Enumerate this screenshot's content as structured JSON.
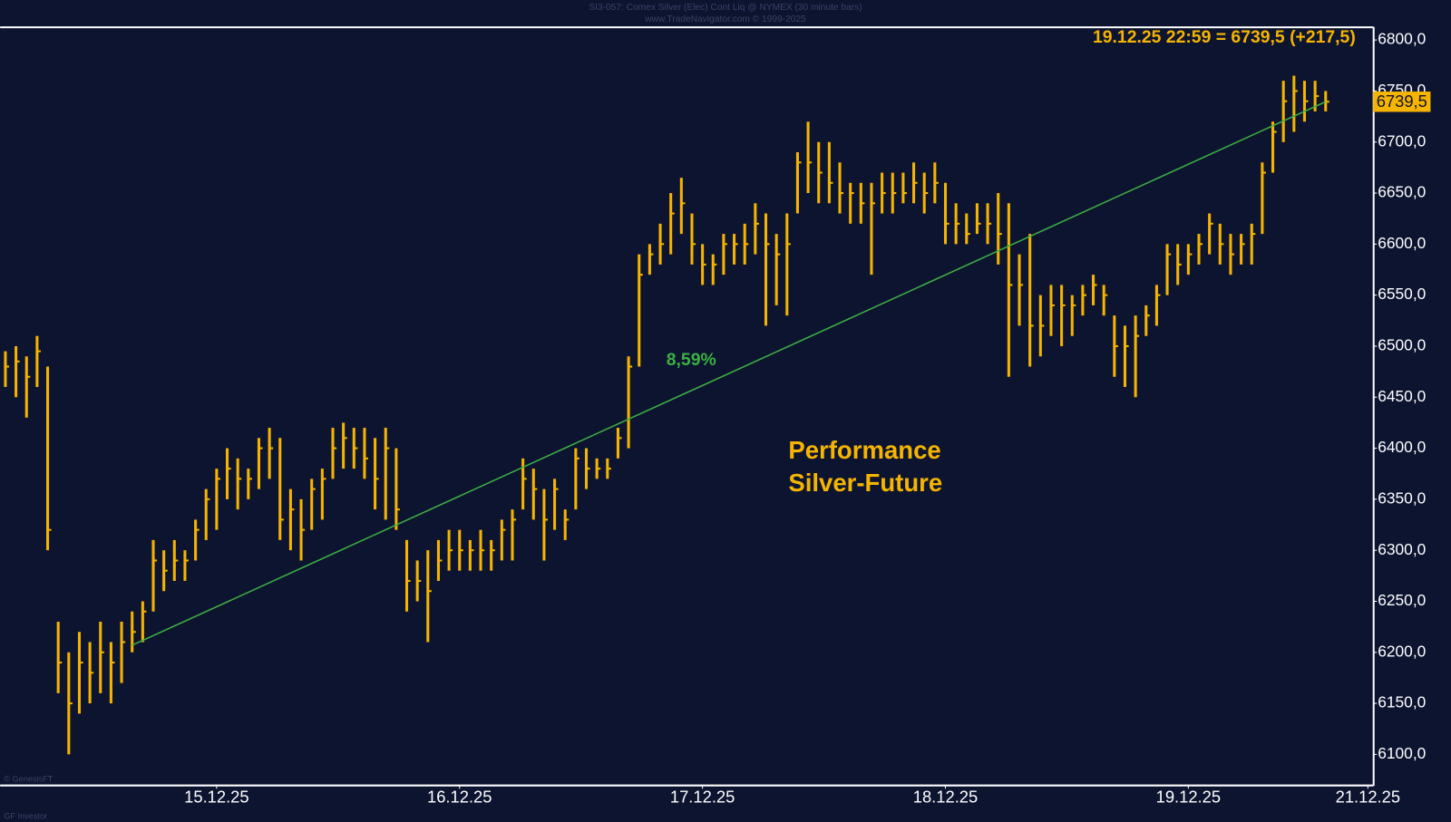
{
  "chart_data": {
    "type": "ohlc",
    "title": "SI3-057: Comex Silver (Elec) Cont Liq @ NYMEX  (30 minute bars)",
    "subtitle": "www.TradeNavigator.com © 1999-2025",
    "annotation": "19.12.25 22:59 = 6739,5 (+217,5)",
    "performance_text": [
      "Performance",
      "Silver-Future"
    ],
    "footer_texts": [
      "© GenesisFT",
      "GF Investor"
    ],
    "color": "#f5b400",
    "categories": [
      null,
      null,
      null,
      null,
      null,
      null,
      null,
      null,
      null,
      null,
      null,
      null,
      null,
      null,
      null,
      null,
      null,
      null,
      null,
      null,
      "15.12.25",
      null,
      null,
      null,
      null,
      null,
      null,
      null,
      null,
      null,
      null,
      null,
      null,
      null,
      null,
      null,
      null,
      null,
      null,
      null,
      null,
      null,
      null,
      "16.12.25",
      null,
      null,
      null,
      null,
      null,
      null,
      null,
      null,
      null,
      null,
      null,
      null,
      null,
      null,
      null,
      null,
      null,
      null,
      null,
      null,
      null,
      null,
      "17.12.25",
      null,
      null,
      null,
      null,
      null,
      null,
      null,
      null,
      null,
      null,
      null,
      null,
      null,
      null,
      null,
      null,
      null,
      null,
      null,
      null,
      null,
      null,
      "18.12.25",
      null,
      null,
      null,
      null,
      null,
      null,
      null,
      null,
      null,
      null,
      null,
      null,
      null,
      null,
      null,
      null,
      null,
      null,
      null,
      null,
      null,
      null,
      "19.12.25",
      null,
      null,
      null,
      null,
      null,
      null,
      null,
      null,
      null,
      null,
      null,
      null,
      null,
      null,
      null,
      null,
      "21.12.25"
    ],
    "high": [
      6495,
      6500,
      6490,
      6510,
      6480,
      6230,
      6200,
      6220,
      6210,
      6230,
      6210,
      6230,
      6240,
      6250,
      6310,
      6300,
      6310,
      6300,
      6330,
      6360,
      6380,
      6400,
      6390,
      6380,
      6410,
      6420,
      6410,
      6360,
      6350,
      6370,
      6380,
      6420,
      6425,
      6420,
      6420,
      6410,
      6420,
      6400,
      6310,
      6290,
      6300,
      6310,
      6320,
      6320,
      6310,
      6320,
      6310,
      6330,
      6340,
      6390,
      6380,
      6360,
      6370,
      6340,
      6400,
      6400,
      6390,
      6390,
      6420,
      6490,
      6590,
      6600,
      6620,
      6650,
      6665,
      6630,
      6600,
      6590,
      6610,
      6610,
      6620,
      6640,
      6630,
      6610,
      6630,
      6690,
      6720,
      6700,
      6700,
      6680,
      6660,
      6660,
      6660,
      6670,
      6670,
      6670,
      6680,
      6670,
      6680,
      6660,
      6640,
      6630,
      6640,
      6640,
      6650,
      6640,
      6590,
      6610,
      6550,
      6560,
      6560,
      6550,
      6560,
      6570,
      6560,
      6530,
      6520,
      6530,
      6540,
      6560,
      6600,
      6600,
      6600,
      6610,
      6630,
      6620,
      6610,
      6610,
      6620,
      6680,
      6720,
      6760,
      6765,
      6760,
      6760,
      6750,
      null,
      null,
      null,
      null
    ],
    "low": [
      6460,
      6450,
      6430,
      6460,
      6300,
      6160,
      6100,
      6140,
      6150,
      6160,
      6150,
      6170,
      6200,
      6210,
      6240,
      6260,
      6270,
      6270,
      6290,
      6310,
      6320,
      6350,
      6340,
      6350,
      6360,
      6370,
      6310,
      6300,
      6290,
      6320,
      6330,
      6370,
      6380,
      6380,
      6370,
      6340,
      6330,
      6320,
      6240,
      6250,
      6210,
      6270,
      6280,
      6280,
      6280,
      6280,
      6280,
      6290,
      6290,
      6340,
      6330,
      6290,
      6320,
      6310,
      6340,
      6360,
      6370,
      6370,
      6390,
      6400,
      6480,
      6570,
      6580,
      6590,
      6610,
      6580,
      6560,
      6560,
      6570,
      6580,
      6580,
      6590,
      6520,
      6540,
      6530,
      6630,
      6650,
      6640,
      6640,
      6630,
      6620,
      6620,
      6570,
      6630,
      6630,
      6640,
      6640,
      6630,
      6640,
      6600,
      6600,
      6600,
      6610,
      6600,
      6580,
      6470,
      6520,
      6480,
      6490,
      6510,
      6500,
      6510,
      6530,
      6540,
      6530,
      6470,
      6460,
      6450,
      6510,
      6520,
      6550,
      6560,
      6570,
      6580,
      6590,
      6580,
      6570,
      6580,
      6580,
      6610,
      6670,
      6700,
      6710,
      6720,
      6730,
      6730,
      null,
      null,
      null,
      null
    ],
    "close": [
      6480,
      6485,
      6470,
      6495,
      6320,
      6190,
      6150,
      6190,
      6180,
      6200,
      6190,
      6210,
      6220,
      6240,
      6290,
      6280,
      6290,
      6290,
      6320,
      6350,
      6370,
      6380,
      6370,
      6370,
      6400,
      6400,
      6330,
      6340,
      6320,
      6360,
      6370,
      6400,
      6410,
      6400,
      6390,
      6370,
      6400,
      6340,
      6270,
      6270,
      6260,
      6290,
      6300,
      6300,
      6300,
      6300,
      6300,
      6320,
      6330,
      6370,
      6360,
      6330,
      6360,
      6330,
      6390,
      6380,
      6380,
      6380,
      6410,
      6480,
      6570,
      6590,
      6600,
      6630,
      6640,
      6600,
      6580,
      6580,
      6600,
      6600,
      6600,
      6620,
      6600,
      6590,
      6600,
      6680,
      6680,
      6670,
      6660,
      6650,
      6650,
      6640,
      6640,
      6650,
      6650,
      6650,
      6660,
      6650,
      6660,
      6620,
      6620,
      6610,
      6620,
      6620,
      6610,
      6560,
      6560,
      6520,
      6520,
      6540,
      6540,
      6540,
      6550,
      6560,
      6550,
      6500,
      6500,
      6510,
      6530,
      6550,
      6590,
      6580,
      6590,
      6600,
      6620,
      6600,
      6590,
      6600,
      6610,
      6670,
      6710,
      6740,
      6750,
      6740,
      6745,
      6739.5,
      null,
      null,
      null,
      null
    ],
    "last_value": {
      "value": 6739.5,
      "label": "6739,5"
    },
    "trend": {
      "x": [
        12,
        125
      ],
      "values": [
        6207,
        6739.5
      ],
      "label": "8,59%",
      "color": "#3cb043"
    },
    "ylim": [
      6070,
      6812
    ],
    "yticks": [
      {
        "value": 6100,
        "label": "6100,0"
      },
      {
        "value": 6150,
        "label": "6150,0"
      },
      {
        "value": 6200,
        "label": "6200,0"
      },
      {
        "value": 6250,
        "label": "6250,0"
      },
      {
        "value": 6300,
        "label": "6300,0"
      },
      {
        "value": 6350,
        "label": "6350,0"
      },
      {
        "value": 6400,
        "label": "6400,0"
      },
      {
        "value": 6450,
        "label": "6450,0"
      },
      {
        "value": 6500,
        "label": "6500,0"
      },
      {
        "value": 6550,
        "label": "6550,0"
      },
      {
        "value": 6600,
        "label": "6600,0"
      },
      {
        "value": 6650,
        "label": "6650,0"
      },
      {
        "value": 6700,
        "label": "6700,0"
      },
      {
        "value": 6750,
        "label": "6750,0"
      },
      {
        "value": 6800,
        "label": "6800,0"
      }
    ]
  }
}
